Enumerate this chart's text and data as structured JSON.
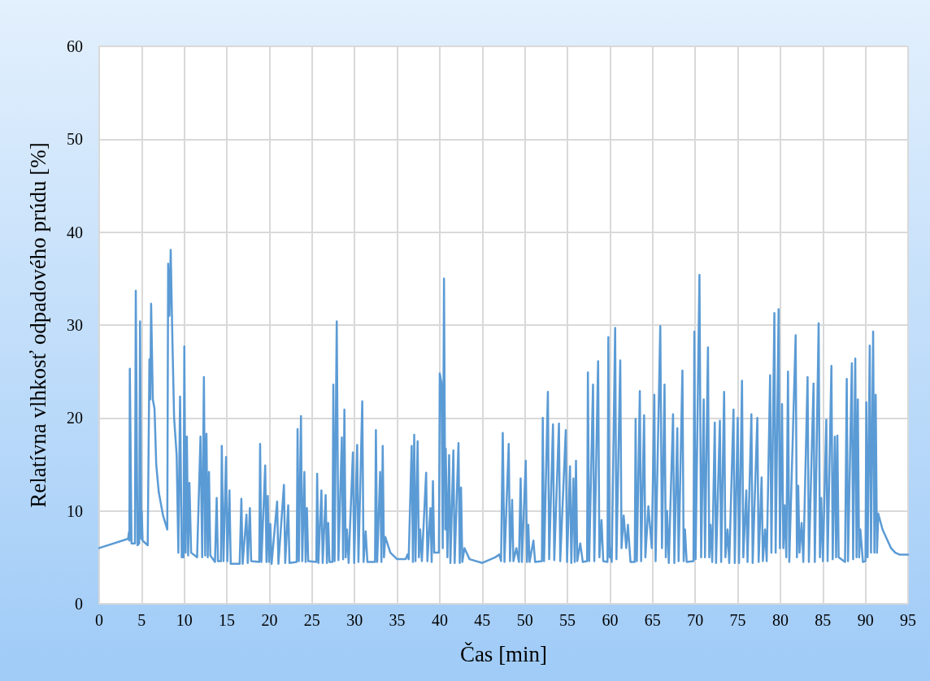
{
  "chart_data": {
    "type": "line",
    "xlabel": "Čas [min]",
    "ylabel": "Relatívna vlhkosť odpadového prúdu [%]",
    "color": "#5b9bd5",
    "grid": true,
    "xlim": [
      0,
      95
    ],
    "xticks": [
      0,
      5,
      10,
      15,
      20,
      25,
      30,
      35,
      40,
      45,
      50,
      55,
      60,
      65,
      70,
      75,
      80,
      85,
      90,
      95
    ],
    "ylim": [
      0,
      60
    ],
    "yticks": [
      0,
      10,
      20,
      30,
      40,
      50,
      60
    ],
    "x": [
      0,
      3.4,
      3.5,
      3.55,
      3.6,
      3.8,
      4.2,
      4.3,
      4.5,
      4.7,
      4.8,
      4.95,
      5.0,
      5.1,
      5.7,
      5.9,
      6.0,
      6.1,
      6.3,
      6.5,
      6.7,
      7.0,
      7.5,
      8.0,
      8.1,
      8.25,
      8.4,
      8.6,
      8.8,
      9.1,
      9.3,
      9.5,
      9.7,
      9.9,
      10.0,
      10.15,
      10.3,
      10.45,
      10.6,
      10.8,
      11.5,
      11.9,
      12.1,
      12.3,
      12.45,
      12.6,
      12.75,
      12.9,
      13.05,
      13.6,
      13.8,
      13.95,
      14.3,
      14.4,
      14.6,
      14.9,
      15.05,
      15.3,
      15.45,
      16.5,
      16.7,
      16.85,
      17.3,
      17.45,
      17.7,
      17.85,
      18.8,
      18.9,
      19.05,
      19.5,
      19.65,
      19.8,
      19.95,
      20.1,
      20.25,
      20.9,
      21.05,
      21.7,
      21.85,
      22.2,
      22.35,
      23.2,
      23.3,
      23.45,
      23.7,
      23.85,
      24.1,
      24.25,
      24.4,
      24.55,
      25.5,
      25.6,
      25.75,
      26.1,
      26.25,
      26.6,
      26.75,
      26.9,
      27.05,
      27.4,
      27.5,
      27.65,
      27.9,
      28.1,
      28.5,
      28.65,
      28.8,
      28.95,
      29.1,
      29.3,
      29.8,
      29.95,
      30.3,
      30.45,
      30.9,
      31.05,
      31.3,
      31.5,
      32.4,
      32.5,
      32.65,
      33.0,
      33.15,
      33.3,
      33.45,
      33.6,
      34.2,
      35.0,
      36.0,
      36.2,
      36.35,
      36.7,
      36.85,
      37.0,
      37.15,
      37.4,
      37.55,
      37.7,
      37.9,
      38.4,
      38.55,
      38.9,
      39.05,
      39.2,
      39.35,
      39.9,
      40.0,
      40.2,
      40.35,
      40.5,
      40.65,
      40.7,
      40.9,
      41.1,
      41.25,
      41.6,
      41.75,
      42.2,
      42.35,
      42.5,
      42.65,
      42.9,
      43.5,
      45.0,
      46.5,
      47.0,
      47.2,
      47.4,
      47.6,
      48.1,
      48.25,
      48.5,
      48.65,
      49.0,
      49.3,
      49.5,
      49.65,
      50.1,
      50.25,
      50.4,
      50.55,
      51.0,
      51.2,
      52.0,
      52.1,
      52.25,
      52.7,
      52.85,
      53.3,
      53.45,
      54.0,
      54.15,
      54.8,
      54.95,
      55.3,
      55.45,
      55.7,
      55.85,
      56.0,
      56.15,
      56.5,
      56.8,
      57.3,
      57.4,
      57.55,
      58.0,
      58.15,
      58.6,
      58.75,
      59.0,
      59.2,
      59.7,
      59.8,
      59.95,
      60.0,
      60.2,
      60.6,
      60.75,
      61.2,
      61.35,
      61.6,
      61.9,
      62.1,
      62.4,
      62.9,
      63.0,
      63.15,
      63.5,
      63.65,
      64.0,
      64.15,
      64.5,
      64.9,
      65.2,
      65.35,
      65.9,
      66.1,
      66.4,
      66.55,
      66.7,
      66.9,
      67.4,
      67.55,
      67.9,
      68.05,
      68.5,
      68.65,
      68.8,
      69.0,
      69.8,
      69.9,
      70.05,
      70.5,
      70.7,
      71.0,
      71.15,
      71.5,
      71.65,
      71.8,
      72.0,
      72.3,
      72.45,
      72.9,
      73.05,
      73.4,
      73.55,
      73.8,
      74.0,
      74.5,
      74.65,
      75.0,
      75.15,
      75.5,
      75.65,
      76.0,
      76.15,
      76.6,
      76.75,
      77.3,
      77.45,
      77.8,
      77.95,
      78.2,
      78.4,
      78.8,
      78.95,
      79.3,
      79.45,
      79.8,
      79.95,
      80.2,
      80.35,
      80.5,
      80.7,
      80.9,
      81.05,
      81.8,
      81.95,
      82.1,
      82.25,
      82.5,
      82.7,
      83.2,
      83.35,
      83.9,
      84.05,
      84.5,
      84.65,
      84.8,
      85.0,
      85.4,
      85.55,
      86.0,
      86.15,
      86.4,
      86.55,
      86.7,
      86.85,
      87.6,
      87.8,
      87.95,
      88.4,
      88.55,
      88.8,
      88.95,
      89.1,
      89.25,
      89.4,
      89.7,
      90.0,
      90.1,
      90.25,
      90.5,
      90.65,
      90.9,
      91.05,
      91.2,
      91.35,
      91.5,
      92.0,
      92.5,
      93.0,
      93.5,
      94.0,
      95.0
    ],
    "values": [
      6,
      7,
      7.7,
      6.8,
      25.3,
      6.5,
      6.5,
      33.7,
      6.3,
      6.5,
      30.4,
      7,
      10,
      6.8,
      6.3,
      26.3,
      22,
      32.3,
      22,
      21,
      15,
      12,
      9.5,
      8,
      36.6,
      31,
      38.1,
      28.4,
      20,
      16,
      5.5,
      22.3,
      5,
      5,
      27.7,
      5.5,
      18,
      5.2,
      13,
      5.5,
      5,
      18,
      5,
      24.4,
      5.2,
      18.3,
      5,
      14.2,
      5.2,
      4.5,
      11.4,
      4.6,
      4.6,
      17,
      4.6,
      15.8,
      4.6,
      12.2,
      4.3,
      4.3,
      11.3,
      4.3,
      9.6,
      4.4,
      10.3,
      4.6,
      4.5,
      17.2,
      4.5,
      14.9,
      4.5,
      11.6,
      4.5,
      8.6,
      4.3,
      11,
      4.3,
      12.8,
      4.4,
      10.6,
      4.4,
      4.5,
      18.8,
      4.6,
      20.2,
      4.6,
      14.2,
      4.5,
      10.3,
      4.6,
      4.5,
      14,
      4.4,
      12.2,
      4.4,
      11.7,
      4.4,
      8.7,
      4.5,
      4.5,
      23.6,
      4.6,
      30.4,
      4.7,
      17.9,
      4.8,
      20.9,
      5,
      8,
      4.4,
      16.3,
      4.4,
      17.1,
      4.5,
      21.8,
      4.5,
      7.8,
      4.5,
      4.5,
      18.7,
      4.5,
      14.2,
      4.5,
      17,
      5,
      7.2,
      5.5,
      4.8,
      4.8,
      5.3,
      4.8,
      17,
      4.5,
      18.2,
      4.6,
      17.5,
      5,
      8,
      4.6,
      14.1,
      4.6,
      10.3,
      4.5,
      13.2,
      5.5,
      5.5,
      24.8,
      23.8,
      6,
      35,
      8,
      16.7,
      5,
      16,
      4.4,
      16.5,
      4.4,
      17.3,
      4.4,
      12.5,
      4.5,
      6,
      4.8,
      4.4,
      5,
      5.3,
      4.6,
      18.4,
      4.5,
      17.2,
      4.6,
      11.2,
      4.6,
      6,
      4.5,
      13.5,
      4.5,
      15.4,
      4.5,
      8.5,
      4.5,
      6.8,
      4.5,
      4.6,
      20,
      4.6,
      22.8,
      4.8,
      19.3,
      4.7,
      19.4,
      4.6,
      18.7,
      4.5,
      14.8,
      4.4,
      13.5,
      4.5,
      15.4,
      4.6,
      6.5,
      4.5,
      4.6,
      24.9,
      4.6,
      23.6,
      4.6,
      26.1,
      5,
      9,
      4.6,
      4.5,
      28.7,
      5,
      6,
      4.5,
      29.7,
      4.8,
      26.2,
      6,
      9.5,
      6,
      8.5,
      4.5,
      4.5,
      19.9,
      4.6,
      22.9,
      4.6,
      20.3,
      5,
      10.5,
      6,
      22.5,
      4.6,
      29.9,
      6,
      23.6,
      5,
      10,
      4.4,
      20.4,
      4.4,
      18.9,
      4.6,
      25.1,
      4.6,
      8,
      4.5,
      4.6,
      29.3,
      4.8,
      35.4,
      5,
      22,
      5,
      27.6,
      5,
      8.5,
      4.5,
      19.5,
      4.4,
      19.7,
      4.5,
      22.8,
      5,
      8,
      4.4,
      20.9,
      4.4,
      20,
      4.4,
      24,
      5,
      12.2,
      4.5,
      20.4,
      4.4,
      20,
      4.5,
      13.6,
      4.6,
      8,
      4.6,
      24.6,
      5.5,
      31.3,
      5.5,
      31.7,
      6,
      21.5,
      6,
      10.6,
      5,
      25,
      4.5,
      28.9,
      5,
      12.7,
      5.5,
      8.7,
      4.5,
      24.4,
      4.5,
      23.7,
      4.5,
      30.2,
      5,
      11.4,
      4.6,
      19.8,
      4.6,
      25.6,
      4.8,
      18,
      5,
      18.1,
      5,
      4.5,
      24.2,
      4.6,
      25.9,
      4.8,
      26.4,
      5,
      22,
      5,
      8,
      4.5,
      4.6,
      21.7,
      5,
      27.8,
      5.5,
      29.3,
      5.5,
      22.5,
      5.5,
      9.7,
      8,
      7,
      6,
      5.5,
      5.3,
      5.3
    ]
  }
}
